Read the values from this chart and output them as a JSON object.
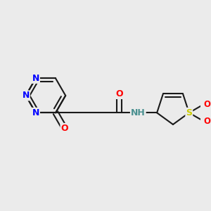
{
  "background_color": "#ebebeb",
  "bond_color": "#1a1a1a",
  "line_width": 1.5,
  "atom_colors": {
    "O": "#ff0000",
    "N": "#0000ff",
    "S": "#cccc00",
    "NH": "#4a9090",
    "C": "#1a1a1a"
  },
  "figsize": [
    3.0,
    3.0
  ],
  "dpi": 100
}
